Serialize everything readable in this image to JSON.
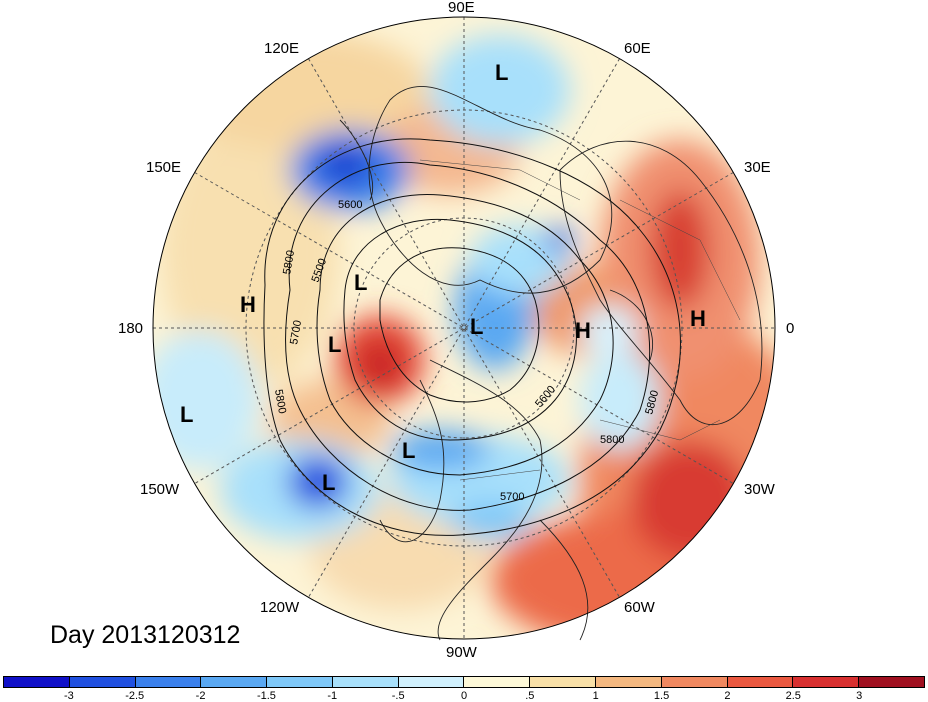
{
  "title": "Day 2013120312",
  "longitude_labels": {
    "lon_90e": "90E",
    "lon_60e": "60E",
    "lon_120e": "120E",
    "lon_150e": "150E",
    "lon_30e": "30E",
    "lon_180": "180",
    "lon_0": "0",
    "lon_150w": "150W",
    "lon_30w": "30W",
    "lon_120w": "120W",
    "lon_60w": "60W",
    "lon_90w": "90W"
  },
  "colorbar": {
    "ticks": [
      "-3",
      "-2.5",
      "-2",
      "-1.5",
      "-1",
      "-.5",
      "0",
      ".5",
      "1",
      "1.5",
      "2",
      "2.5",
      "3"
    ],
    "colors": [
      "#1010c8",
      "#2050e0",
      "#3a80ec",
      "#5aa8f2",
      "#7fc8f8",
      "#a8e0fb",
      "#d0f0fd",
      "#fdf8d8",
      "#f8e0a8",
      "#f4b880",
      "#f08860",
      "#ea5840",
      "#d83030",
      "#a01020"
    ]
  },
  "pressure_centers": [
    {
      "label": "L",
      "name": "low-siberia"
    },
    {
      "label": "L",
      "name": "low-east-asia"
    },
    {
      "label": "L",
      "name": "low-pole"
    },
    {
      "label": "L",
      "name": "low-pacific-west"
    },
    {
      "label": "L",
      "name": "low-pacific-east"
    },
    {
      "label": "L",
      "name": "low-hudson"
    },
    {
      "label": "L",
      "name": "low-gulf-alaska"
    },
    {
      "label": "H",
      "name": "high-pacific"
    },
    {
      "label": "H",
      "name": "high-scandinavia"
    },
    {
      "label": "H",
      "name": "high-europe"
    }
  ],
  "contour_labels": [
    "5600",
    "5500",
    "5800",
    "5700",
    "5800",
    "5600",
    "5800",
    "5800",
    "5700"
  ]
}
